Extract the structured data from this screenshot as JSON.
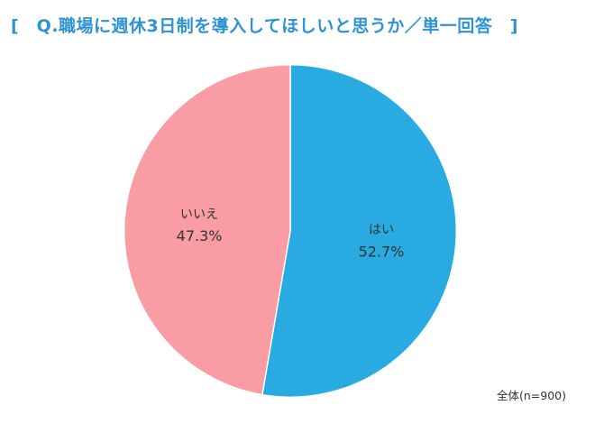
{
  "page": {
    "title": "[　Q.職場に週休3日制を導入してほしいと思うか／単一回答　]",
    "footer_note": "全体(n=900)"
  },
  "colors": {
    "title_blue": "#2d93d2",
    "pie_yes_blue": "#29abe2",
    "pie_no_pink": "#f99ca4",
    "label_text": "#333333",
    "background": "#ffffff"
  },
  "chart_data": {
    "type": "pie",
    "title": "Q.職場に週休3日制を導入してほしいと思うか／単一回答",
    "categories": [
      "はい",
      "いいえ"
    ],
    "values": [
      52.7,
      47.3
    ],
    "value_labels": [
      "52.7%",
      "47.3%"
    ],
    "colors": [
      "#29abe2",
      "#f99ca4"
    ],
    "start_angle_deg": 0,
    "direction": "clockwise",
    "legend": "none",
    "labels_position": "inside",
    "footer_note": "全体(n=900)"
  }
}
